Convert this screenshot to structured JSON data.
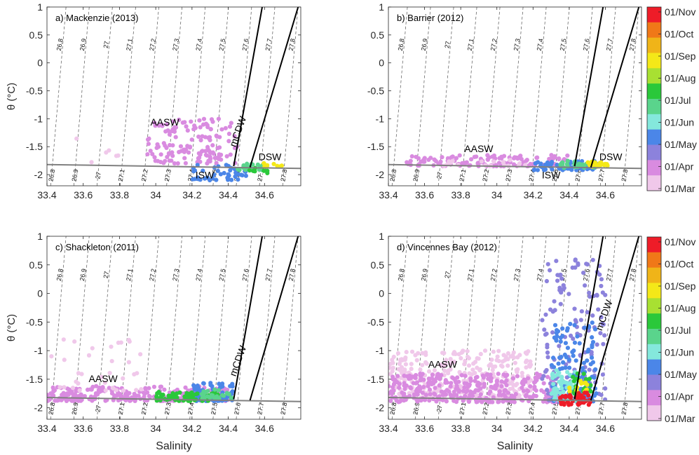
{
  "colors": {
    "axis": "#262626",
    "freezing_line": "#808080",
    "mcdw_line": "#000000",
    "isopycnal": "#555555",
    "month_colors": {
      "Mar": "#f0c8ea",
      "Apr": "#d98be0",
      "May": "#8c82dc",
      "Jun": "#4b86e8",
      "Jul": "#84e8dc",
      "Aug": "#5ad48c",
      "Sep": "#2ac83a",
      "Oct": "#a8e032",
      "Nov": "#f4e818",
      "Dec": "#f0b418",
      "Jan": "#f07818",
      "Feb": "#ee1c28"
    }
  },
  "axes": {
    "xlabel": "Salinity",
    "ylabel": "θ (°C)",
    "xticks": [
      "33.4",
      "33.6",
      "33.8",
      "34",
      "34.2",
      "34.4",
      "34.6"
    ],
    "yticks": [
      "-2",
      "-1.5",
      "-1",
      "-0.5",
      "0",
      "0.5",
      "1"
    ],
    "xlim": [
      33.4,
      34.8
    ],
    "ylim": [
      -2.2,
      1
    ]
  },
  "isopycnal_labels": [
    "26.8",
    "26.9",
    "27",
    "27.1",
    "27.2",
    "27.3",
    "27.4",
    "27.5",
    "27.6",
    "27.7",
    "27.8"
  ],
  "colorbar": {
    "labels": [
      "01/Nov",
      "01/Oct",
      "01/Sep",
      "01/Aug",
      "01/Jul",
      "01/Jun",
      "01/May",
      "01/Apr",
      "01/Mar"
    ],
    "colors": [
      "#ee1c28",
      "#f07818",
      "#f0b418",
      "#f4e818",
      "#a8e032",
      "#2ac83a",
      "#5ad48c",
      "#84e8dc",
      "#4b86e8",
      "#8c82dc",
      "#d98be0",
      "#f0c8ea"
    ]
  },
  "chart_data": [
    {
      "type": "scatter",
      "title": "a) Mackenzie (2013)",
      "xlabel": "",
      "ylabel": "θ (°C)",
      "xlim": [
        33.4,
        34.8
      ],
      "ylim": [
        -2.2,
        1
      ],
      "annotations": [
        {
          "text": "AASW",
          "x": 34.05,
          "y": -1.12
        },
        {
          "text": "mCDW",
          "x": 34.47,
          "y": -1.25,
          "rotation": -70
        },
        {
          "text": "DSW",
          "x": 34.63,
          "y": -1.74
        },
        {
          "text": "ISW",
          "x": 34.27,
          "y": -2.07
        }
      ],
      "clusters": [
        {
          "month": "Apr",
          "x": [
            33.95,
            34.45
          ],
          "y": [
            -1.8,
            -1.0
          ],
          "n": 140
        },
        {
          "month": "Mar",
          "x": [
            33.55,
            33.85
          ],
          "y": [
            -1.8,
            -1.35
          ],
          "n": 6
        },
        {
          "month": "Jun",
          "x": [
            34.2,
            34.5
          ],
          "y": [
            -2.1,
            -1.82
          ],
          "n": 45
        },
        {
          "month": "Aug",
          "x": [
            34.45,
            34.6
          ],
          "y": [
            -1.92,
            -1.8
          ],
          "n": 20
        },
        {
          "month": "Sep",
          "x": [
            34.5,
            34.62
          ],
          "y": [
            -1.98,
            -1.85
          ],
          "n": 10
        },
        {
          "month": "Nov",
          "x": [
            34.58,
            34.7
          ],
          "y": [
            -1.86,
            -1.78
          ],
          "n": 10
        }
      ]
    },
    {
      "type": "scatter",
      "title": "b) Barrier (2012)",
      "xlabel": "",
      "ylabel": "",
      "xlim": [
        33.4,
        34.8
      ],
      "ylim": [
        -2.2,
        1
      ],
      "annotations": [
        {
          "text": "AASW",
          "x": 33.9,
          "y": -1.6
        },
        {
          "text": "DSW",
          "x": 34.63,
          "y": -1.74
        },
        {
          "text": "ISW",
          "x": 34.3,
          "y": -2.07
        }
      ],
      "clusters": [
        {
          "month": "Apr",
          "x": [
            33.5,
            34.4
          ],
          "y": [
            -1.85,
            -1.65
          ],
          "n": 150
        },
        {
          "month": "Mar",
          "x": [
            33.7,
            34.2
          ],
          "y": [
            -1.85,
            -1.72
          ],
          "n": 20
        },
        {
          "month": "Jun",
          "x": [
            34.2,
            34.55
          ],
          "y": [
            -1.92,
            -1.75
          ],
          "n": 60
        },
        {
          "month": "Aug",
          "x": [
            34.35,
            34.55
          ],
          "y": [
            -1.88,
            -1.75
          ],
          "n": 30
        },
        {
          "month": "Nov",
          "x": [
            34.5,
            34.62
          ],
          "y": [
            -1.86,
            -1.76
          ],
          "n": 25
        }
      ]
    },
    {
      "type": "scatter",
      "title": "c) Shackleton (2011)",
      "xlabel": "Salinity",
      "ylabel": "θ (°C)",
      "xlim": [
        33.4,
        34.8
      ],
      "ylim": [
        -2.2,
        1
      ],
      "annotations": [
        {
          "text": "AASW",
          "x": 33.71,
          "y": -1.55
        },
        {
          "text": "mCDW",
          "x": 34.47,
          "y": -1.2,
          "rotation": -70
        }
      ],
      "clusters": [
        {
          "month": "Apr",
          "x": [
            33.4,
            34.4
          ],
          "y": [
            -1.88,
            -1.62
          ],
          "n": 260
        },
        {
          "month": "Mar",
          "x": [
            33.4,
            33.95
          ],
          "y": [
            -1.7,
            -0.8
          ],
          "n": 35
        },
        {
          "month": "Jun",
          "x": [
            34.2,
            34.43
          ],
          "y": [
            -1.88,
            -1.55
          ],
          "n": 60
        },
        {
          "month": "Sep",
          "x": [
            34.0,
            34.35
          ],
          "y": [
            -1.88,
            -1.72
          ],
          "n": 70
        },
        {
          "month": "Aug",
          "x": [
            34.25,
            34.42
          ],
          "y": [
            -1.85,
            -1.68
          ],
          "n": 30
        }
      ]
    },
    {
      "type": "scatter",
      "title": "d) Vincennes Bay (2012)",
      "xlabel": "Salinity",
      "ylabel": "",
      "xlim": [
        33.4,
        34.8
      ],
      "ylim": [
        -2.2,
        1
      ],
      "annotations": [
        {
          "text": "AASW",
          "x": 33.7,
          "y": -1.3
        },
        {
          "text": "mCDW",
          "x": 34.61,
          "y": -0.4,
          "rotation": -70
        }
      ],
      "clusters": [
        {
          "month": "Mar",
          "x": [
            33.4,
            34.2
          ],
          "y": [
            -1.85,
            -1.0
          ],
          "n": 320
        },
        {
          "month": "Apr",
          "x": [
            33.4,
            34.35
          ],
          "y": [
            -1.9,
            -1.4
          ],
          "n": 320
        },
        {
          "month": "May",
          "x": [
            34.25,
            34.6
          ],
          "y": [
            -1.9,
            0.6
          ],
          "n": 150
        },
        {
          "month": "Jun",
          "x": [
            34.3,
            34.55
          ],
          "y": [
            -1.9,
            -0.5
          ],
          "n": 110
        },
        {
          "month": "Jul",
          "x": [
            34.3,
            34.45
          ],
          "y": [
            -1.9,
            -1.3
          ],
          "n": 60
        },
        {
          "month": "Sep",
          "x": [
            34.42,
            34.52
          ],
          "y": [
            -1.75,
            -1.4
          ],
          "n": 25
        },
        {
          "month": "Nov",
          "x": [
            34.4,
            34.5
          ],
          "y": [
            -1.72,
            -1.52
          ],
          "n": 15
        },
        {
          "month": "Feb",
          "x": [
            34.35,
            34.52
          ],
          "y": [
            -1.95,
            -1.72
          ],
          "n": 45
        }
      ]
    }
  ]
}
